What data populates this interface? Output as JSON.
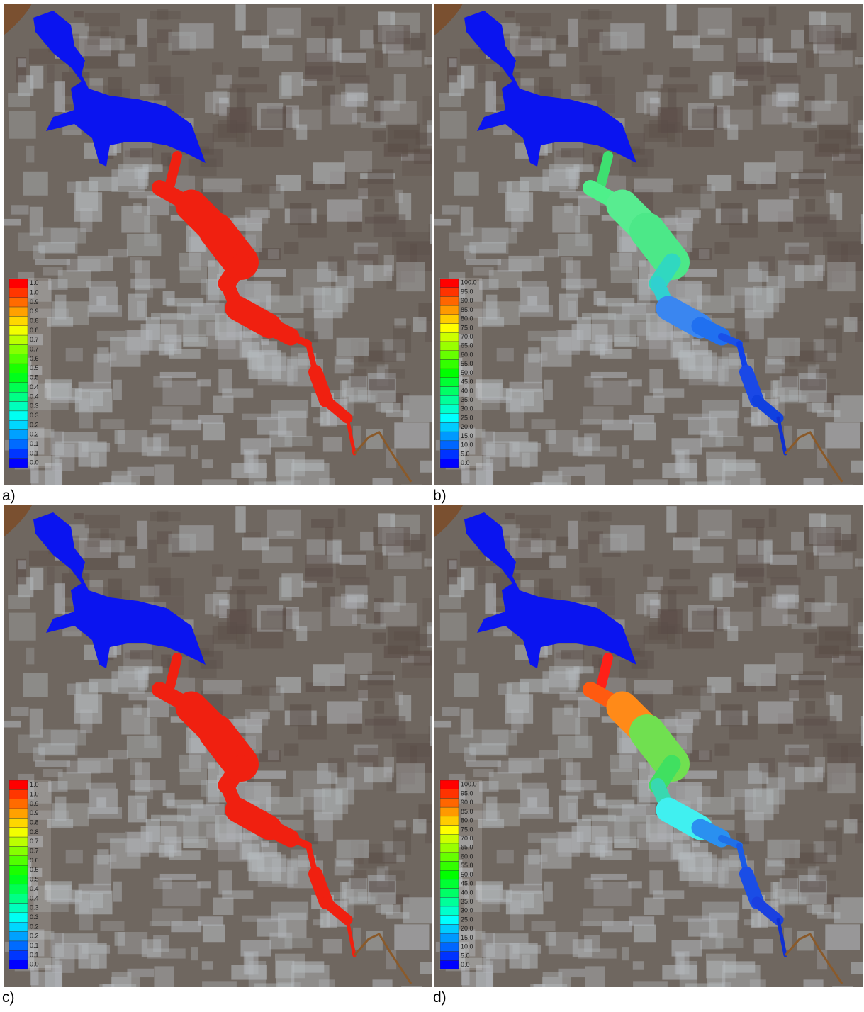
{
  "panels": [
    {
      "label": "a)",
      "legend": [
        "1.0",
        "1.0",
        "0.9",
        "0.9",
        "0.8",
        "0.8",
        "0.7",
        "0.7",
        "0.6",
        "0.5",
        "0.5",
        "0.4",
        "0.4",
        "0.3",
        "0.3",
        "0.2",
        "0.2",
        "0.1",
        "0.1",
        "0.0"
      ]
    },
    {
      "label": "b)",
      "legend": [
        "100.0",
        "95.0",
        "90.0",
        "85.0",
        "80.0",
        "75.0",
        "70.0",
        "65.0",
        "60.0",
        "55.0",
        "50.0",
        "45.0",
        "40.0",
        "35.0",
        "30.0",
        "25.0",
        "20.0",
        "15.0",
        "10.0",
        "5.0",
        "0.0"
      ]
    },
    {
      "label": "c)",
      "legend": [
        "1.0",
        "1.0",
        "0.9",
        "0.9",
        "0.8",
        "0.8",
        "0.7",
        "0.7",
        "0.6",
        "0.5",
        "0.5",
        "0.4",
        "0.4",
        "0.3",
        "0.3",
        "0.2",
        "0.2",
        "0.1",
        "0.1",
        "0.0"
      ]
    },
    {
      "label": "d)",
      "legend": [
        "100.0",
        "95.0",
        "90.0",
        "85.0",
        "80.0",
        "75.0",
        "70.0",
        "65.0",
        "60.0",
        "55.0",
        "50.0",
        "45.0",
        "40.0",
        "35.0",
        "30.0",
        "25.0",
        "20.0",
        "15.0",
        "10.0",
        "5.0",
        "0.0"
      ]
    }
  ]
}
